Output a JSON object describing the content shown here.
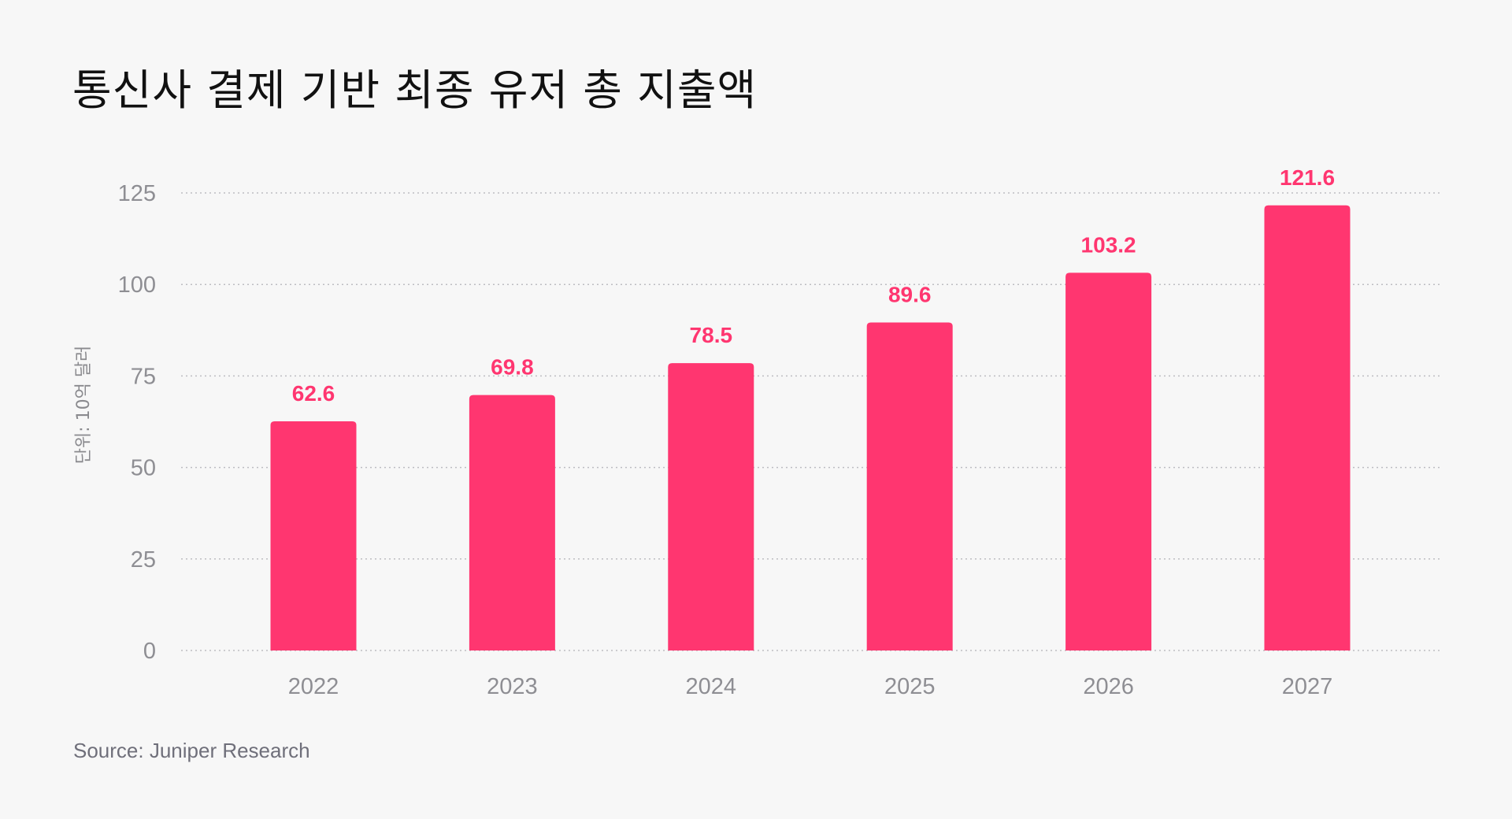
{
  "chart_data": {
    "type": "bar",
    "title": "통신사 결제 기반 최종 유저 총 지출액",
    "ylabel": "단위: 10억 달러",
    "xlabel": "",
    "categories": [
      "2022",
      "2023",
      "2024",
      "2025",
      "2026",
      "2027"
    ],
    "values": [
      62.6,
      69.8,
      78.5,
      89.6,
      103.2,
      121.6
    ],
    "value_labels": [
      "62.6",
      "69.8",
      "78.5",
      "89.6",
      "103.2",
      "121.6"
    ],
    "ylim": [
      0,
      125
    ],
    "yticks": [
      0,
      25,
      50,
      75,
      100,
      125
    ],
    "grid": "horizontal dotted",
    "legend": "none",
    "colors": {
      "bar": "#ff3670",
      "label": "#ff3670",
      "background": "#f7f7f7"
    }
  },
  "source": "Source: Juniper Research"
}
